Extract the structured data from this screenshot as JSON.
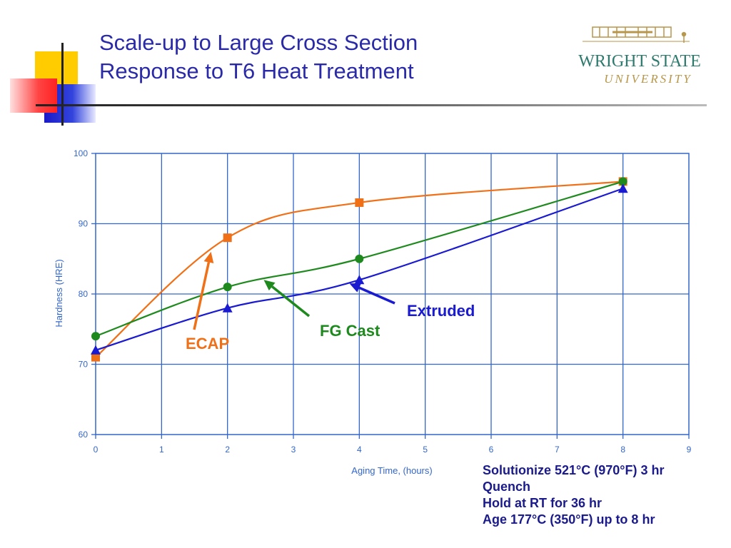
{
  "slide": {
    "title_line1": "Scale-up to Large Cross Section",
    "title_line2": "Response to T6 Heat Treatment"
  },
  "logo": {
    "name_line1": "WRIGHT STATE",
    "name_line2": "UNIVERSITY",
    "icon": "wright-flyer-logo"
  },
  "colors": {
    "title": "#2a2aa8",
    "axis": "#3366cc",
    "ecap": "#f07018",
    "fg_cast": "#1e8a1e",
    "extruded": "#1a1ad0",
    "deco_yellow": "#ffcc00",
    "deco_red": "#ff3333",
    "deco_blue": "#2233cc"
  },
  "chart_data": {
    "type": "line",
    "xlabel": "Aging Time, (hours)",
    "ylabel": "Hardness (HRE)",
    "xlim": [
      0,
      9
    ],
    "ylim": [
      60,
      100
    ],
    "xticks": [
      0,
      1,
      2,
      3,
      4,
      5,
      6,
      7,
      8,
      9
    ],
    "yticks": [
      60,
      70,
      80,
      90,
      100
    ],
    "grid": true,
    "series": [
      {
        "name": "ECAP",
        "color": "#f07018",
        "marker": "square",
        "x": [
          0,
          2,
          4,
          8
        ],
        "y": [
          71,
          88,
          93,
          96
        ]
      },
      {
        "name": "FG Cast",
        "color": "#1e8a1e",
        "marker": "circle",
        "x": [
          0,
          2,
          4,
          8
        ],
        "y": [
          74,
          81,
          85,
          96
        ]
      },
      {
        "name": "Extruded",
        "color": "#1a1ad0",
        "marker": "triangle",
        "x": [
          0,
          2,
          4,
          8
        ],
        "y": [
          72,
          78,
          82,
          95
        ]
      }
    ],
    "annotations": [
      {
        "text": "ECAP",
        "color": "#f07018",
        "arrow_to": [
          1.75,
          86
        ]
      },
      {
        "text": "FG Cast",
        "color": "#1e8a1e",
        "arrow_to": [
          2.55,
          82
        ]
      },
      {
        "text": "Extruded",
        "color": "#1a1ad0",
        "arrow_to": [
          3.85,
          81.5
        ]
      }
    ]
  },
  "notes": [
    "Solutionize 521°C (970°F) 3 hr",
    "Quench",
    "Hold at RT for 36 hr",
    "Age 177°C (350°F) up to 8 hr"
  ]
}
